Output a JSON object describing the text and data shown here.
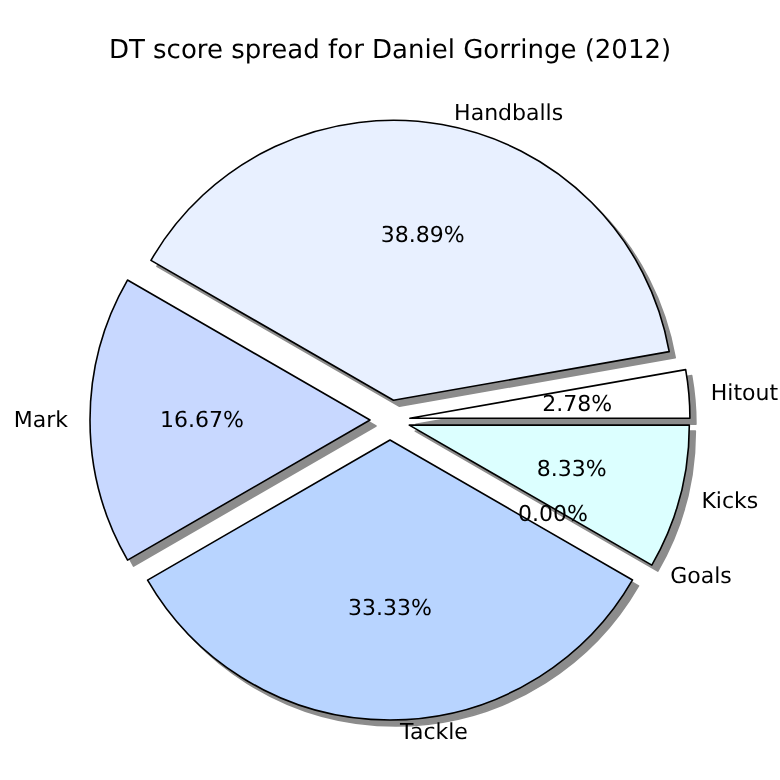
{
  "chart_data": {
    "type": "pie",
    "title": "DT score spread for Daniel Gorringe (2012)",
    "categories": [
      "Hitout",
      "Handballs",
      "Mark",
      "Tackle",
      "Goals",
      "Kicks"
    ],
    "values": [
      2.78,
      38.89,
      16.67,
      33.33,
      0.0,
      8.33
    ],
    "colors": [
      "#ffffff",
      "#e8f0ff",
      "#c8d8ff",
      "#b8d4ff",
      "#c8ecff",
      "#dcffff"
    ],
    "value_labels": [
      "2.78%",
      "38.89%",
      "16.67%",
      "33.33%",
      "0.00%",
      "8.33%"
    ]
  }
}
